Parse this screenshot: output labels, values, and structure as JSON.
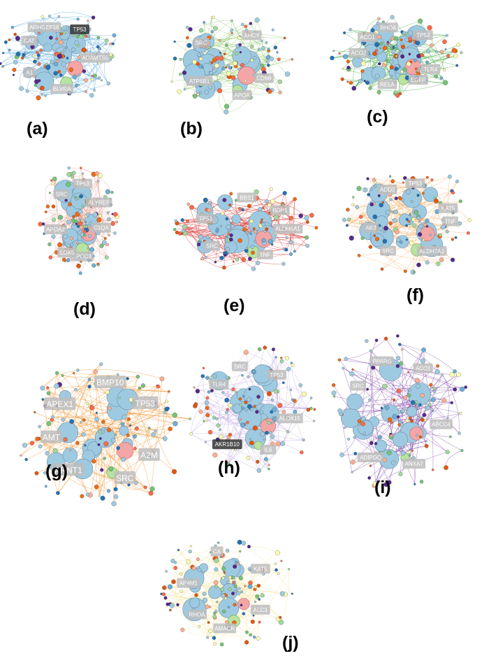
{
  "figure": {
    "panels": [
      {
        "caption": "(a)",
        "edge_color": "#4aa3d8",
        "labels": [
          "ADAMTS5",
          "BLVRA",
          "A1",
          "CAT",
          "ARHGEF16",
          "TP53"
        ],
        "dark_labels": [
          "TP53"
        ]
      },
      {
        "caption": "(b)",
        "edge_color": "#8cc66b",
        "labels": [
          "CD8B",
          "APOA",
          "ATP6B1",
          "SRC",
          "AHCY"
        ],
        "dark_labels": []
      },
      {
        "caption": "(c)",
        "edge_color": "#2e9e2e",
        "labels": [
          "TLR4",
          "EGFR",
          "RELA",
          "ACO2",
          "ACO1",
          "RHOA",
          "TP53"
        ],
        "dark_labels": []
      },
      {
        "caption": "(d)",
        "edge_color": "#e89a8f",
        "labels": [
          "C1QA",
          "APOC3",
          "LOX5",
          "APOA2",
          "SRC",
          "TP53",
          "ALYREF"
        ],
        "dark_labels": []
      },
      {
        "caption": "(e)",
        "edge_color": "#d62020",
        "labels": [
          "ALDH6A1",
          "TNF",
          "SRC",
          "TP53",
          "BBS1",
          "BOP1"
        ],
        "dark_labels": []
      },
      {
        "caption": "(f)",
        "edge_color": "#f4a95a",
        "labels": [
          "TNF",
          "ALDH7A1",
          "SRC",
          "AK3",
          "ADD3",
          "TP53",
          "KAT5"
        ],
        "dark_labels": []
      },
      {
        "caption": "(g)",
        "edge_color": "#f08a1c",
        "labels": [
          "A2M",
          "SRC",
          "ARNT1",
          "AMT",
          "APEX1",
          "BMP10",
          "TP53"
        ],
        "dark_labels": []
      },
      {
        "caption": "(h)",
        "edge_color": "#b9a3dc",
        "labels": [
          "ALOX15",
          "IL6",
          "AKR1B10",
          "TLR4",
          "SRC",
          "TP53"
        ],
        "dark_labels": [
          "AKR1B10"
        ]
      },
      {
        "caption": "(i)",
        "edge_color": "#7b3fa6",
        "labels": [
          "ABCC4",
          "ANXA7",
          "ADIPOQ",
          "SRC",
          "PPARG",
          "ACO1"
        ],
        "dark_labels": []
      },
      {
        "caption": "(j)",
        "edge_color": "#f2e08a",
        "labels": [
          "ALC3",
          "AMACR",
          "RHOA",
          "AP4M1",
          "CA",
          "KAT5"
        ],
        "dark_labels": []
      }
    ]
  }
}
